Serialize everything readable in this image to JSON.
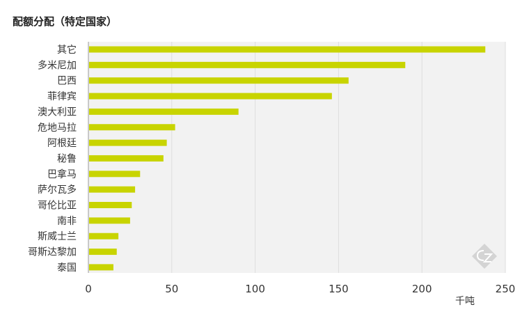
{
  "chart_data": {
    "type": "bar",
    "orientation": "horizontal",
    "title": "配额分配（特定国家）",
    "categories": [
      "其它",
      "多米尼加",
      "巴西",
      "菲律宾",
      "澳大利亚",
      "危地马拉",
      "阿根廷",
      "秘鲁",
      "巴拿马",
      "萨尔瓦多",
      "哥伦比亚",
      "南非",
      "斯威士兰",
      "哥斯达黎加",
      "泰国"
    ],
    "values": [
      238,
      190,
      156,
      146,
      90,
      52,
      47,
      45,
      31,
      28,
      26,
      25,
      18,
      17,
      15
    ],
    "xlabel": "千吨",
    "xlim": [
      0,
      250
    ],
    "xticks": [
      0,
      50,
      100,
      150,
      200,
      250
    ],
    "grid": true,
    "bar_color": "#c8d400",
    "plot_background": "#f2f2f2"
  },
  "watermark": {
    "icon": "cz-logo-icon"
  }
}
